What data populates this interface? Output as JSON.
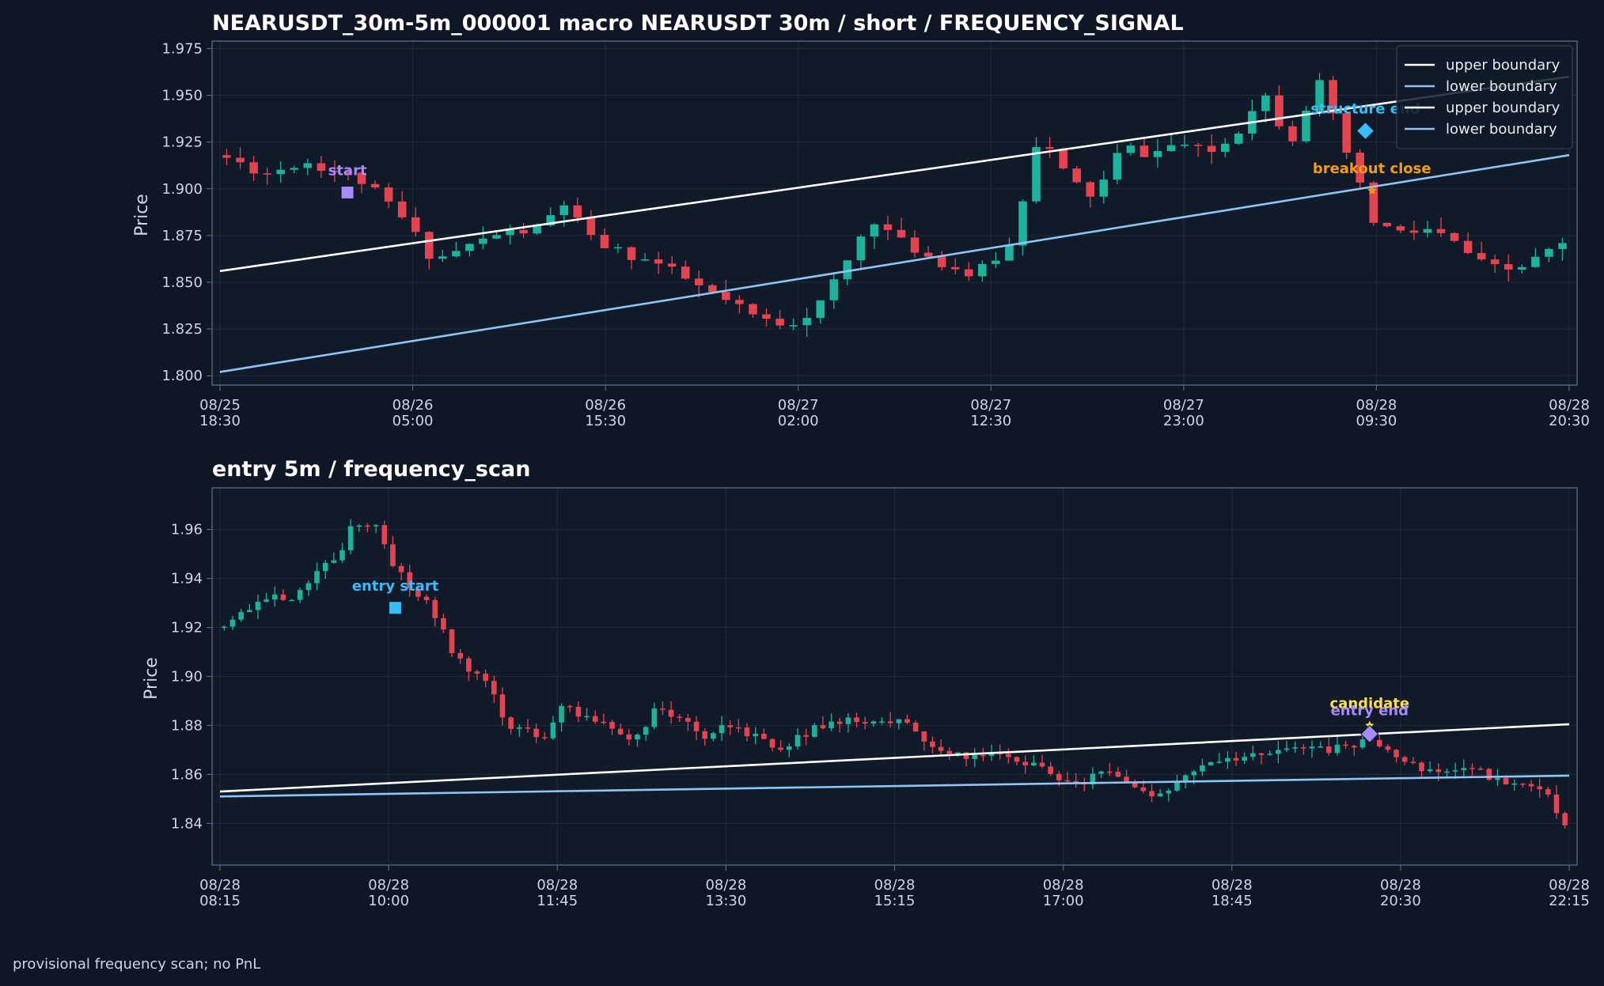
{
  "footer": "provisional frequency scan; no PnL",
  "colors": {
    "background": "#0f1626",
    "plot_bg": "#111a28",
    "grid": "#1f2a3a",
    "frame": "#59657a",
    "up": "#1bb39c",
    "down": "#e5434f",
    "upper_boundary": "#ffffff",
    "lower_boundary": "#8ec5f5",
    "start_marker": "#a78bfa",
    "structure_end": "#38bdf8",
    "breakout_close": "#f59e0b",
    "candidate": "#fde047"
  },
  "chart_data": [
    {
      "type": "candlestick",
      "title": "NEARUSDT_30m-5m_000001 macro NEARUSDT 30m / short / FREQUENCY_SIGNAL",
      "ylabel": "Price",
      "ylim": [
        1.795,
        1.979
      ],
      "yticks": [
        "1.800",
        "1.825",
        "1.850",
        "1.875",
        "1.900",
        "1.925",
        "1.950",
        "1.975"
      ],
      "xticks": [
        [
          "08/25",
          "18:30"
        ],
        [
          "08/26",
          "05:00"
        ],
        [
          "08/26",
          "15:30"
        ],
        [
          "08/27",
          "02:00"
        ],
        [
          "08/27",
          "12:30"
        ],
        [
          "08/27",
          "23:00"
        ],
        [
          "08/28",
          "09:30"
        ],
        [
          "08/28",
          "20:30"
        ]
      ],
      "bar_count": 100,
      "anchors": [
        [
          0,
          1.918
        ],
        [
          5,
          1.908
        ],
        [
          9,
          1.915
        ],
        [
          12,
          1.91
        ],
        [
          15,
          1.905
        ],
        [
          19,
          1.888
        ],
        [
          23,
          1.862
        ],
        [
          26,
          1.868
        ],
        [
          30,
          1.876
        ],
        [
          34,
          1.878
        ],
        [
          37,
          1.892
        ],
        [
          40,
          1.872
        ],
        [
          43,
          1.866
        ],
        [
          47,
          1.86
        ],
        [
          52,
          1.846
        ],
        [
          58,
          1.83
        ],
        [
          61,
          1.828
        ],
        [
          64,
          1.835
        ],
        [
          67,
          1.857
        ],
        [
          70,
          1.885
        ],
        [
          73,
          1.872
        ],
        [
          77,
          1.862
        ],
        [
          81,
          1.853
        ],
        [
          85,
          1.87
        ],
        [
          88,
          1.93
        ],
        [
          91,
          1.906
        ],
        [
          94,
          1.895
        ],
        [
          97,
          1.923
        ],
        [
          100,
          1.918
        ],
        [
          103,
          1.925
        ],
        [
          106,
          1.918
        ],
        [
          109,
          1.928
        ],
        [
          112,
          1.953
        ],
        [
          115,
          1.925
        ],
        [
          118,
          1.958
        ],
        [
          121,
          1.92
        ],
        [
          124,
          1.882
        ],
        [
          127,
          1.876
        ],
        [
          130,
          1.878
        ],
        [
          133,
          1.87
        ],
        [
          136,
          1.858
        ],
        [
          139,
          1.856
        ],
        [
          142,
          1.864
        ],
        [
          144,
          1.87
        ],
        [
          145,
          1.868
        ]
      ],
      "x_index_max": 145,
      "seed": 11,
      "volatility": 0.012,
      "boundaries": [
        {
          "name": "upper boundary",
          "role": "upper",
          "x": [
            0,
            145
          ],
          "y": [
            1.856,
            1.96
          ]
        },
        {
          "name": "lower boundary",
          "role": "lower",
          "x": [
            0,
            145
          ],
          "y": [
            1.802,
            1.918
          ]
        }
      ],
      "legend": [
        "upper boundary",
        "lower boundary",
        "upper boundary",
        "lower boundary"
      ],
      "legend_position": "top-right",
      "annotations": [
        {
          "label": "start",
          "x": 13.7,
          "y": 1.898,
          "marker": "square",
          "color_key": "start_marker",
          "label_dx": 0,
          "label_dy": -22
        },
        {
          "label": "structure end",
          "x": 123.1,
          "y": 1.931,
          "marker": "diamond",
          "color_key": "structure_end",
          "label_dx": 0,
          "label_dy": -22
        },
        {
          "label": "breakout close",
          "x": 123.8,
          "y": 1.899,
          "marker": "star",
          "color_key": "breakout_close",
          "label_dx": 0,
          "label_dy": -22
        }
      ]
    },
    {
      "type": "candlestick",
      "title": "entry 5m / frequency_scan",
      "ylabel": "Price",
      "ylim": [
        1.823,
        1.977
      ],
      "yticks": [
        "1.84",
        "1.86",
        "1.88",
        "1.90",
        "1.92",
        "1.94",
        "1.96"
      ],
      "xticks": [
        [
          "08/28",
          "08:15"
        ],
        [
          "08/28",
          "10:00"
        ],
        [
          "08/28",
          "11:45"
        ],
        [
          "08/28",
          "13:30"
        ],
        [
          "08/28",
          "15:15"
        ],
        [
          "08/28",
          "17:00"
        ],
        [
          "08/28",
          "18:45"
        ],
        [
          "08/28",
          "20:30"
        ],
        [
          "08/28",
          "22:15"
        ]
      ],
      "bar_count": 160,
      "anchors": [
        [
          0,
          1.92
        ],
        [
          4,
          1.928
        ],
        [
          8,
          1.932
        ],
        [
          12,
          1.932
        ],
        [
          16,
          1.945
        ],
        [
          19,
          1.948
        ],
        [
          21,
          1.963
        ],
        [
          25,
          1.962
        ],
        [
          28,
          1.945
        ],
        [
          31,
          1.935
        ],
        [
          34,
          1.928
        ],
        [
          37,
          1.912
        ],
        [
          40,
          1.903
        ],
        [
          43,
          1.898
        ],
        [
          46,
          1.88
        ],
        [
          49,
          1.878
        ],
        [
          52,
          1.875
        ],
        [
          55,
          1.888
        ],
        [
          58,
          1.885
        ],
        [
          62,
          1.882
        ],
        [
          66,
          1.872
        ],
        [
          70,
          1.886
        ],
        [
          74,
          1.882
        ],
        [
          78,
          1.876
        ],
        [
          82,
          1.88
        ],
        [
          86,
          1.875
        ],
        [
          90,
          1.87
        ],
        [
          94,
          1.876
        ],
        [
          98,
          1.882
        ],
        [
          102,
          1.882
        ],
        [
          106,
          1.88
        ],
        [
          110,
          1.884
        ],
        [
          114,
          1.872
        ],
        [
          118,
          1.868
        ],
        [
          122,
          1.868
        ],
        [
          126,
          1.868
        ],
        [
          130,
          1.864
        ],
        [
          134,
          1.86
        ],
        [
          138,
          1.856
        ],
        [
          142,
          1.862
        ],
        [
          146,
          1.858
        ],
        [
          150,
          1.852
        ],
        [
          154,
          1.856
        ],
        [
          158,
          1.862
        ],
        [
          162,
          1.866
        ],
        [
          166,
          1.867
        ],
        [
          170,
          1.87
        ],
        [
          174,
          1.87
        ],
        [
          178,
          1.87
        ],
        [
          182,
          1.872
        ],
        [
          186,
          1.874
        ],
        [
          190,
          1.866
        ],
        [
          194,
          1.862
        ],
        [
          198,
          1.862
        ],
        [
          202,
          1.862
        ],
        [
          206,
          1.856
        ],
        [
          210,
          1.856
        ],
        [
          214,
          1.85
        ],
        [
          216,
          1.838
        ],
        [
          217,
          1.847
        ]
      ],
      "x_index_max": 217,
      "seed": 29,
      "volatility": 0.007,
      "boundaries": [
        {
          "name": "upper boundary",
          "role": "upper",
          "x": [
            0,
            217
          ],
          "y": [
            1.853,
            1.8805
          ]
        },
        {
          "name": "lower boundary",
          "role": "lower",
          "x": [
            0,
            217
          ],
          "y": [
            1.851,
            1.8595
          ]
        }
      ],
      "annotations": [
        {
          "label": "entry start",
          "x": 28.2,
          "y": 1.928,
          "marker": "square",
          "color_key": "structure_end",
          "label_dx": 0,
          "label_dy": -22
        },
        {
          "label": "candidate",
          "x": 184.9,
          "y": 1.88,
          "marker": "star",
          "color_key": "candidate",
          "label_dx": 0,
          "label_dy": -22
        },
        {
          "label": "entry end",
          "x": 184.9,
          "y": 1.8765,
          "marker": "diamond",
          "color_key": "start_marker",
          "label_dx": 0,
          "label_dy": -24
        }
      ]
    }
  ]
}
